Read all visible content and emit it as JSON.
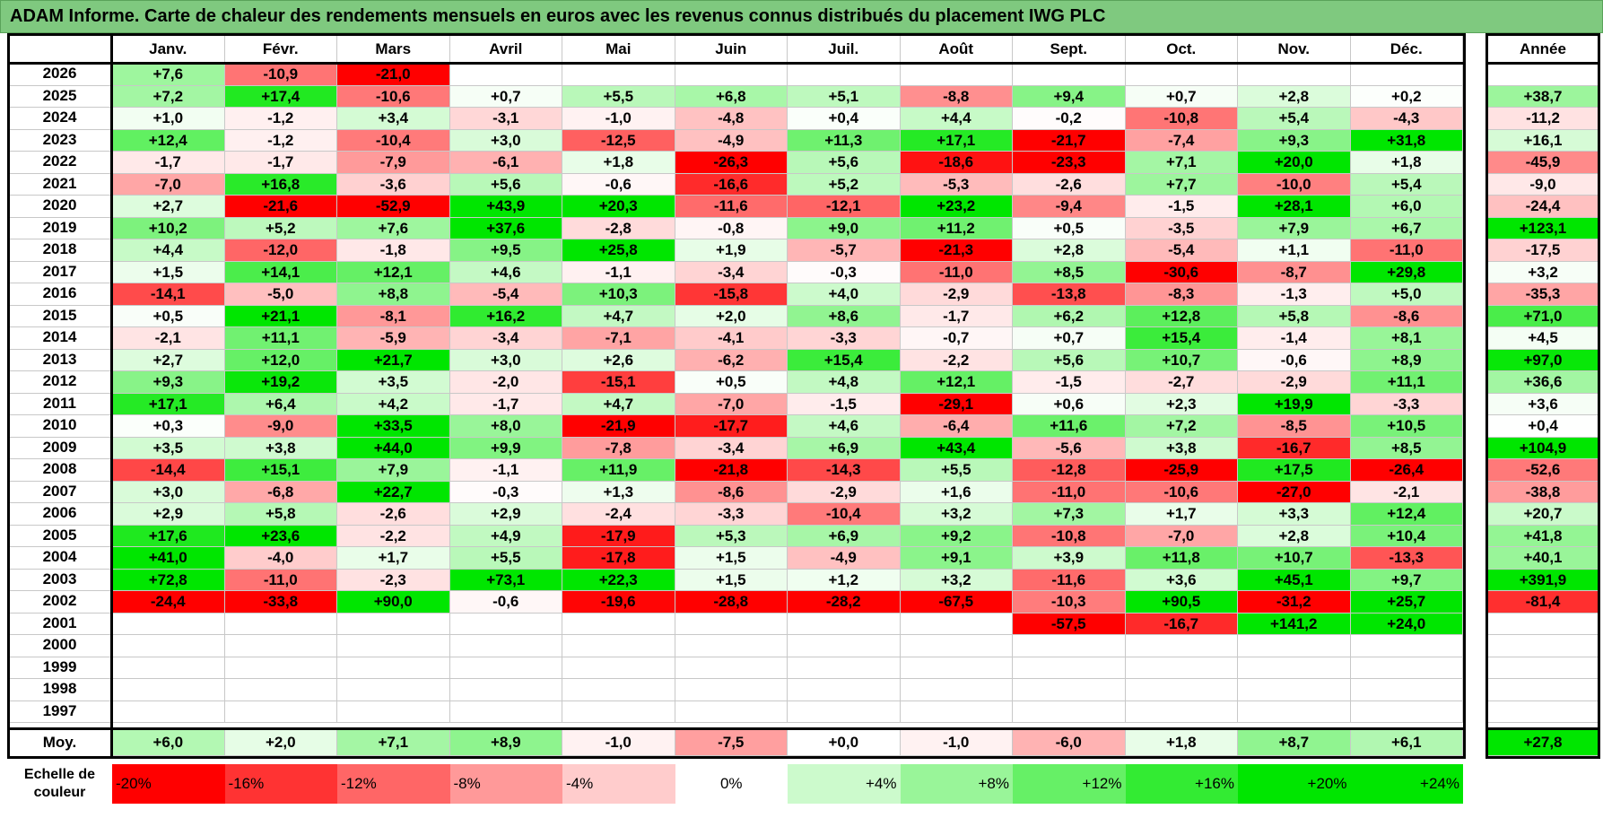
{
  "title": "ADAM Informe. Carte de chaleur des rendements mensuels en euros avec les revenus connus distribués du placement IWG PLC",
  "chart_data": {
    "type": "heatmap",
    "title": "ADAM Informe. Carte de chaleur des rendements mensuels en euros avec les revenus connus distribués du placement IWG PLC",
    "months": [
      "Janv.",
      "Févr.",
      "Mars",
      "Avril",
      "Mai",
      "Juin",
      "Juil.",
      "Août",
      "Sept.",
      "Oct.",
      "Nov.",
      "Déc."
    ],
    "year_label": "Année",
    "rows": [
      {
        "year": "2026",
        "months": [
          "+7,6",
          "-10,9",
          "-21,0",
          "",
          "",
          "",
          "",
          "",
          "",
          "",
          "",
          ""
        ],
        "annual": ""
      },
      {
        "year": "2025",
        "months": [
          "+7,2",
          "+17,4",
          "-10,6",
          "+0,7",
          "+5,5",
          "+6,8",
          "+5,1",
          "-8,8",
          "+9,4",
          "+0,7",
          "+2,8",
          "+0,2"
        ],
        "annual": "+38,7"
      },
      {
        "year": "2024",
        "months": [
          "+1,0",
          "-1,2",
          "+3,4",
          "-3,1",
          "-1,0",
          "-4,8",
          "+0,4",
          "+4,4",
          "-0,2",
          "-10,8",
          "+5,4",
          "-4,3"
        ],
        "annual": "-11,2"
      },
      {
        "year": "2023",
        "months": [
          "+12,4",
          "-1,2",
          "-10,4",
          "+3,0",
          "-12,5",
          "-4,9",
          "+11,3",
          "+17,1",
          "-21,7",
          "-7,4",
          "+9,3",
          "+31,8"
        ],
        "annual": "+16,1"
      },
      {
        "year": "2022",
        "months": [
          "-1,7",
          "-1,7",
          "-7,9",
          "-6,1",
          "+1,8",
          "-26,3",
          "+5,6",
          "-18,6",
          "-23,3",
          "+7,1",
          "+20,0",
          "+1,8"
        ],
        "annual": "-45,9"
      },
      {
        "year": "2021",
        "months": [
          "-7,0",
          "+16,8",
          "-3,6",
          "+5,6",
          "-0,6",
          "-16,6",
          "+5,2",
          "-5,3",
          "-2,6",
          "+7,7",
          "-10,0",
          "+5,4"
        ],
        "annual": "-9,0"
      },
      {
        "year": "2020",
        "months": [
          "+2,7",
          "-21,6",
          "-52,9",
          "+43,9",
          "+20,3",
          "-11,6",
          "-12,1",
          "+23,2",
          "-9,4",
          "-1,5",
          "+28,1",
          "+6,0"
        ],
        "annual": "-24,4"
      },
      {
        "year": "2019",
        "months": [
          "+10,2",
          "+5,2",
          "+7,6",
          "+37,6",
          "-2,8",
          "-0,8",
          "+9,0",
          "+11,2",
          "+0,5",
          "-3,5",
          "+7,9",
          "+6,7"
        ],
        "annual": "+123,1"
      },
      {
        "year": "2018",
        "months": [
          "+4,4",
          "-12,0",
          "-1,8",
          "+9,5",
          "+25,8",
          "+1,9",
          "-5,7",
          "-21,3",
          "+2,8",
          "-5,4",
          "+1,1",
          "-11,0"
        ],
        "annual": "-17,5"
      },
      {
        "year": "2017",
        "months": [
          "+1,5",
          "+14,1",
          "+12,1",
          "+4,6",
          "-1,1",
          "-3,4",
          "-0,3",
          "-11,0",
          "+8,5",
          "-30,6",
          "-8,7",
          "+29,8"
        ],
        "annual": "+3,2"
      },
      {
        "year": "2016",
        "months": [
          "-14,1",
          "-5,0",
          "+8,8",
          "-5,4",
          "+10,3",
          "-15,8",
          "+4,0",
          "-2,9",
          "-13,8",
          "-8,3",
          "-1,3",
          "+5,0"
        ],
        "annual": "-35,3"
      },
      {
        "year": "2015",
        "months": [
          "+0,5",
          "+21,1",
          "-8,1",
          "+16,2",
          "+4,7",
          "+2,0",
          "+8,6",
          "-1,7",
          "+6,2",
          "+12,8",
          "+5,8",
          "-8,6"
        ],
        "annual": "+71,0"
      },
      {
        "year": "2014",
        "months": [
          "-2,1",
          "+11,1",
          "-5,9",
          "-3,4",
          "-7,1",
          "-4,1",
          "-3,3",
          "-0,7",
          "+0,7",
          "+15,4",
          "-1,4",
          "+8,1"
        ],
        "annual": "+4,5"
      },
      {
        "year": "2013",
        "months": [
          "+2,7",
          "+12,0",
          "+21,7",
          "+3,0",
          "+2,6",
          "-6,2",
          "+15,4",
          "-2,2",
          "+5,6",
          "+10,7",
          "-0,6",
          "+8,9"
        ],
        "annual": "+97,0"
      },
      {
        "year": "2012",
        "months": [
          "+9,3",
          "+19,2",
          "+3,5",
          "-2,0",
          "-15,1",
          "+0,5",
          "+4,8",
          "+12,1",
          "-1,5",
          "-2,7",
          "-2,9",
          "+11,1"
        ],
        "annual": "+36,6"
      },
      {
        "year": "2011",
        "months": [
          "+17,1",
          "+6,4",
          "+4,2",
          "-1,7",
          "+4,7",
          "-7,0",
          "-1,5",
          "-29,1",
          "+0,6",
          "+2,3",
          "+19,9",
          "-3,3"
        ],
        "annual": "+3,6"
      },
      {
        "year": "2010",
        "months": [
          "+0,3",
          "-9,0",
          "+33,5",
          "+8,0",
          "-21,9",
          "-17,7",
          "+4,6",
          "-6,4",
          "+11,6",
          "+7,2",
          "-8,5",
          "+10,5"
        ],
        "annual": "+0,4"
      },
      {
        "year": "2009",
        "months": [
          "+3,5",
          "+3,8",
          "+44,0",
          "+9,9",
          "-7,8",
          "-3,4",
          "+6,9",
          "+43,4",
          "-5,6",
          "+3,8",
          "-16,7",
          "+8,5"
        ],
        "annual": "+104,9"
      },
      {
        "year": "2008",
        "months": [
          "-14,4",
          "+15,1",
          "+7,9",
          "-1,1",
          "+11,9",
          "-21,8",
          "-14,3",
          "+5,5",
          "-12,8",
          "-25,9",
          "+17,5",
          "-26,4"
        ],
        "annual": "-52,6"
      },
      {
        "year": "2007",
        "months": [
          "+3,0",
          "-6,8",
          "+22,7",
          "-0,3",
          "+1,3",
          "-8,6",
          "-2,9",
          "+1,6",
          "-11,0",
          "-10,6",
          "-27,0",
          "-2,1"
        ],
        "annual": "-38,8"
      },
      {
        "year": "2006",
        "months": [
          "+2,9",
          "+5,8",
          "-2,6",
          "+2,9",
          "-2,4",
          "-3,3",
          "-10,4",
          "+3,2",
          "+7,3",
          "+1,7",
          "+3,3",
          "+12,4"
        ],
        "annual": "+20,7"
      },
      {
        "year": "2005",
        "months": [
          "+17,6",
          "+23,6",
          "-2,2",
          "+4,9",
          "-17,9",
          "+5,3",
          "+6,9",
          "+9,2",
          "-10,8",
          "-7,0",
          "+2,8",
          "+10,4"
        ],
        "annual": "+41,8"
      },
      {
        "year": "2004",
        "months": [
          "+41,0",
          "-4,0",
          "+1,7",
          "+5,5",
          "-17,8",
          "+1,5",
          "-4,9",
          "+9,1",
          "+3,9",
          "+11,8",
          "+10,7",
          "-13,3"
        ],
        "annual": "+40,1"
      },
      {
        "year": "2003",
        "months": [
          "+72,8",
          "-11,0",
          "-2,3",
          "+73,1",
          "+22,3",
          "+1,5",
          "+1,2",
          "+3,2",
          "-11,6",
          "+3,6",
          "+45,1",
          "+9,7"
        ],
        "annual": "+391,9"
      },
      {
        "year": "2002",
        "months": [
          "-24,4",
          "-33,8",
          "+90,0",
          "-0,6",
          "-19,6",
          "-28,8",
          "-28,2",
          "-67,5",
          "-10,3",
          "+90,5",
          "-31,2",
          "+25,7"
        ],
        "annual": "-81,4"
      },
      {
        "year": "2001",
        "months": [
          "",
          "",
          "",
          "",
          "",
          "",
          "",
          "",
          "-57,5",
          "-16,7",
          "+141,2",
          "+24,0"
        ],
        "annual": ""
      },
      {
        "year": "2000",
        "months": [
          "",
          "",
          "",
          "",
          "",
          "",
          "",
          "",
          "",
          "",
          "",
          ""
        ],
        "annual": ""
      },
      {
        "year": "1999",
        "months": [
          "",
          "",
          "",
          "",
          "",
          "",
          "",
          "",
          "",
          "",
          "",
          ""
        ],
        "annual": ""
      },
      {
        "year": "1998",
        "months": [
          "",
          "",
          "",
          "",
          "",
          "",
          "",
          "",
          "",
          "",
          "",
          ""
        ],
        "annual": ""
      },
      {
        "year": "1997",
        "months": [
          "",
          "",
          "",
          "",
          "",
          "",
          "",
          "",
          "",
          "",
          "",
          ""
        ],
        "annual": ""
      }
    ],
    "average": {
      "label": "Moy.",
      "months": [
        "+6,0",
        "+2,0",
        "+7,1",
        "+8,9",
        "-1,0",
        "-7,5",
        "+0,0",
        "-1,0",
        "-6,0",
        "+1,8",
        "+8,7",
        "+6,1"
      ],
      "annual": "+27,8"
    },
    "scale": {
      "label_line1": "Echelle de",
      "label_line2": "couleur",
      "steps": [
        "-20%",
        "-16%",
        "-12%",
        "-8%",
        "-4%",
        "0%",
        "+4%",
        "+8%",
        "+12%",
        "+16%",
        "+20%",
        "+24%"
      ]
    },
    "colors": {
      "positive_max": "#00e600",
      "negative_max": "#ff0000",
      "neutral": "#ffffff",
      "title_bg": "#7fc97f"
    }
  }
}
